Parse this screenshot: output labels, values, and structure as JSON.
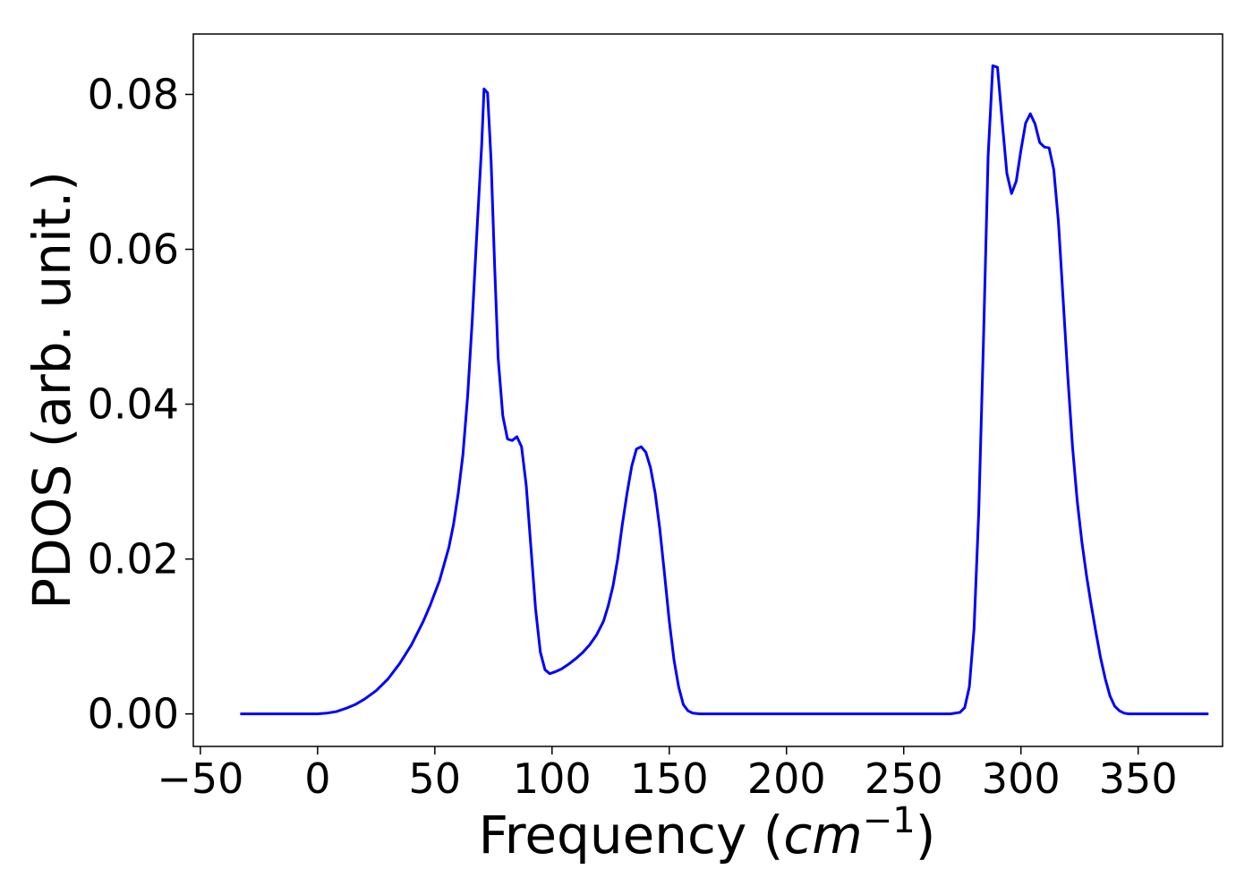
{
  "chart_data": {
    "type": "line",
    "title": "",
    "xlabel_prefix": "Frequency (",
    "xlabel_unit": "cm",
    "xlabel_exponent": "−1",
    "xlabel_suffix": ")",
    "ylabel": "PDOS (arb. unit.)",
    "xlim": [
      -53,
      386
    ],
    "ylim": [
      -0.0042,
      0.0878
    ],
    "xticks": [
      -50,
      0,
      50,
      100,
      150,
      200,
      250,
      300,
      350
    ],
    "xtick_labels": [
      "−50",
      "0",
      "50",
      "100",
      "150",
      "200",
      "250",
      "300",
      "350"
    ],
    "yticks": [
      0,
      0.02,
      0.04,
      0.06,
      0.08
    ],
    "ytick_labels": [
      "0.00",
      "0.02",
      "0.04",
      "0.06",
      "0.08"
    ],
    "grid": false,
    "legend": "none",
    "series": [
      {
        "color": "#0000ff",
        "points": [
          [
            -33,
            0.0
          ],
          [
            -20,
            0.0
          ],
          [
            0,
            0.0
          ],
          [
            4,
            0.0001
          ],
          [
            8,
            0.0003
          ],
          [
            12,
            0.0007
          ],
          [
            16,
            0.0012
          ],
          [
            20,
            0.0019
          ],
          [
            25,
            0.003
          ],
          [
            30,
            0.0045
          ],
          [
            35,
            0.0065
          ],
          [
            40,
            0.0089
          ],
          [
            45,
            0.0119
          ],
          [
            48,
            0.014
          ],
          [
            52,
            0.0172
          ],
          [
            56,
            0.0215
          ],
          [
            58,
            0.0245
          ],
          [
            60,
            0.0285
          ],
          [
            62,
            0.0335
          ],
          [
            64,
            0.041
          ],
          [
            66,
            0.051
          ],
          [
            68,
            0.0625
          ],
          [
            70,
            0.0735
          ],
          [
            71,
            0.0807
          ],
          [
            72.5,
            0.0802
          ],
          [
            74,
            0.0715
          ],
          [
            75.5,
            0.058
          ],
          [
            77,
            0.046
          ],
          [
            79,
            0.0385
          ],
          [
            81,
            0.0355
          ],
          [
            83,
            0.0353
          ],
          [
            85,
            0.0358
          ],
          [
            87,
            0.0345
          ],
          [
            89,
            0.0295
          ],
          [
            91,
            0.0215
          ],
          [
            93,
            0.0135
          ],
          [
            95,
            0.008
          ],
          [
            97,
            0.0057
          ],
          [
            99,
            0.0052
          ],
          [
            101,
            0.0054
          ],
          [
            104,
            0.0058
          ],
          [
            107,
            0.0064
          ],
          [
            110,
            0.0071
          ],
          [
            113,
            0.0079
          ],
          [
            116,
            0.0089
          ],
          [
            119,
            0.0102
          ],
          [
            122,
            0.012
          ],
          [
            124,
            0.014
          ],
          [
            126,
            0.0165
          ],
          [
            128,
            0.02
          ],
          [
            130,
            0.0245
          ],
          [
            132,
            0.0285
          ],
          [
            134,
            0.032
          ],
          [
            136,
            0.0342
          ],
          [
            138,
            0.0345
          ],
          [
            140,
            0.0338
          ],
          [
            142,
            0.0318
          ],
          [
            144,
            0.0285
          ],
          [
            146,
            0.0238
          ],
          [
            148,
            0.018
          ],
          [
            150,
            0.012
          ],
          [
            152,
            0.007
          ],
          [
            154,
            0.0035
          ],
          [
            156,
            0.0012
          ],
          [
            158,
            0.0004
          ],
          [
            160,
            0.0001
          ],
          [
            163,
            0.0
          ],
          [
            200,
            0.0
          ],
          [
            250,
            0.0
          ],
          [
            270,
            0.0
          ],
          [
            274,
            0.0002
          ],
          [
            276,
            0.0008
          ],
          [
            278,
            0.0035
          ],
          [
            280,
            0.011
          ],
          [
            282,
            0.026
          ],
          [
            284,
            0.048
          ],
          [
            286,
            0.072
          ],
          [
            288,
            0.0837
          ],
          [
            290,
            0.0835
          ],
          [
            292,
            0.0765
          ],
          [
            294,
            0.0698
          ],
          [
            296,
            0.0672
          ],
          [
            298,
            0.0688
          ],
          [
            300,
            0.0728
          ],
          [
            302,
            0.0763
          ],
          [
            304,
            0.0775
          ],
          [
            306,
            0.0762
          ],
          [
            308,
            0.0738
          ],
          [
            310,
            0.0732
          ],
          [
            312,
            0.0731
          ],
          [
            314,
            0.0703
          ],
          [
            316,
            0.0635
          ],
          [
            318,
            0.0535
          ],
          [
            320,
            0.0435
          ],
          [
            322,
            0.0345
          ],
          [
            324,
            0.0275
          ],
          [
            326,
            0.0222
          ],
          [
            328,
            0.0178
          ],
          [
            330,
            0.014
          ],
          [
            332,
            0.0105
          ],
          [
            334,
            0.0072
          ],
          [
            336,
            0.0045
          ],
          [
            338,
            0.0023
          ],
          [
            340,
            0.001
          ],
          [
            342,
            0.0004
          ],
          [
            344,
            0.0001
          ],
          [
            346,
            0.0
          ],
          [
            360,
            0.0
          ],
          [
            380,
            0.0
          ]
        ]
      }
    ]
  }
}
